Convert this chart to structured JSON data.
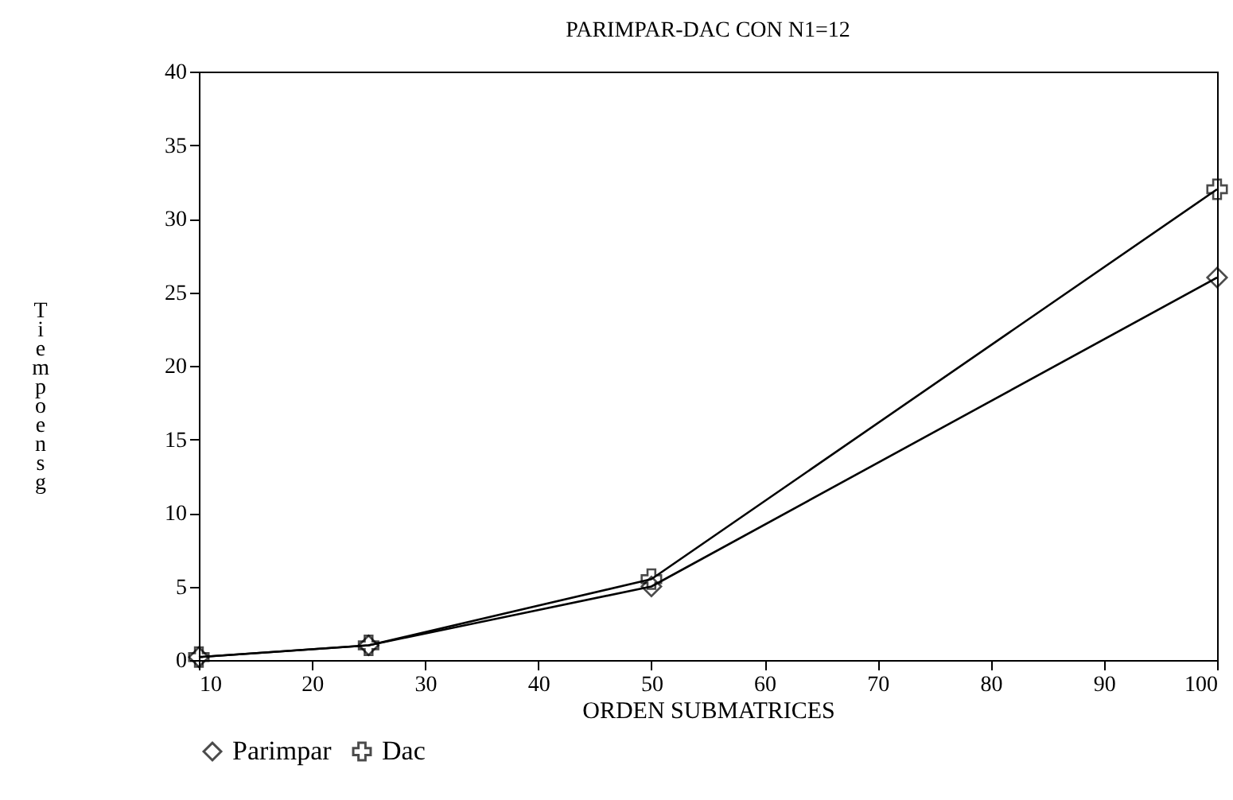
{
  "chart_data": {
    "type": "line",
    "title": "PARIMPAR-DAC CON N1=12",
    "xlabel": "ORDEN SUBMATRICES",
    "ylabel": "Tiempo en sg",
    "x": [
      10,
      25,
      50,
      100
    ],
    "series": [
      {
        "name": "Parimpar",
        "color": "#000000",
        "marker": "diamond",
        "values": [
          0.2,
          1.0,
          5.0,
          26
        ]
      },
      {
        "name": "Dac",
        "color": "#000000",
        "marker": "cross",
        "values": [
          0.2,
          1.0,
          5.5,
          32
        ]
      }
    ],
    "xlim": [
      10,
      100
    ],
    "xticks": [
      10,
      20,
      30,
      40,
      50,
      60,
      70,
      80,
      90,
      100
    ],
    "ylim": [
      0,
      40
    ],
    "yticks": [
      0,
      5,
      10,
      15,
      20,
      25,
      30,
      35,
      40
    ],
    "grid": false,
    "legend": "bottom",
    "line_style": "solid"
  }
}
